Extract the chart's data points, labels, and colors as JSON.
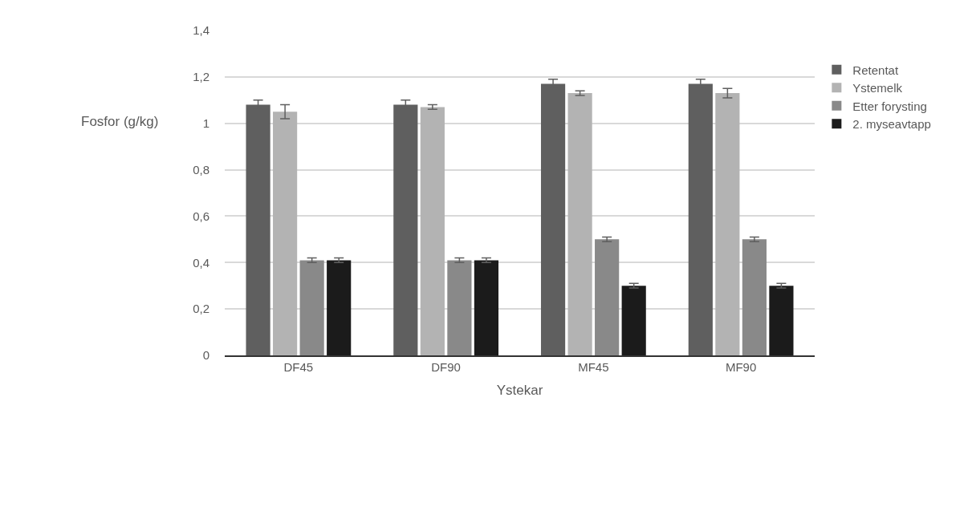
{
  "chart_data": {
    "type": "bar",
    "xlabel": "Ystekar",
    "ylabel": "Fosfor (g/kg)",
    "categories": [
      "DF45",
      "DF90",
      "MF45",
      "MF90"
    ],
    "series": [
      {
        "name": "Retentat",
        "color": "#5f5f5f",
        "values": [
          1.08,
          1.08,
          1.17,
          1.17
        ],
        "errors": [
          0.02,
          0.02,
          0.02,
          0.02
        ]
      },
      {
        "name": "Ystemelk",
        "color": "#b3b3b3",
        "values": [
          1.05,
          1.07,
          1.13,
          1.13
        ],
        "errors": [
          0.03,
          0.01,
          0.01,
          0.02
        ]
      },
      {
        "name": "Etter forysting",
        "color": "#898989",
        "values": [
          0.41,
          0.41,
          0.5,
          0.5
        ],
        "errors": [
          0.01,
          0.01,
          0.01,
          0.01
        ]
      },
      {
        "name": "2. myseavtapp",
        "color": "#1b1b1b",
        "values": [
          0.41,
          0.41,
          0.3,
          0.3
        ],
        "errors": [
          0.01,
          0.01,
          0.01,
          0.01
        ]
      }
    ],
    "ylim": [
      0,
      1.4
    ],
    "yticks": [
      0,
      {
        "value": 0.2,
        "label": "0,2"
      },
      {
        "value": 0.4,
        "label": "0,4"
      },
      {
        "value": 0.6,
        "label": "0,6"
      },
      {
        "value": 0.8,
        "label": "0,8"
      },
      1,
      {
        "value": 1.2,
        "label": "1,2"
      },
      {
        "value": 1.4,
        "label": "1,4"
      }
    ],
    "grid": "y",
    "legend": "right"
  }
}
